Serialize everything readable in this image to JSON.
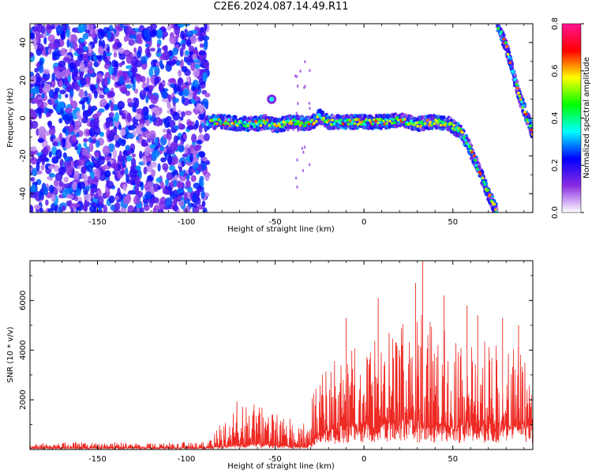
{
  "title": "C2E6.2024.087.14.49.R11",
  "chart_data": [
    {
      "type": "heatmap",
      "xlabel": "Height of straight line (km)",
      "ylabel": "Frequency (Hz)",
      "xlim": [
        -188,
        95
      ],
      "ylim": [
        -50,
        50
      ],
      "x_ticks": [
        -150,
        -100,
        -50,
        0,
        50
      ],
      "y_ticks": [
        -40,
        -20,
        0,
        20,
        40
      ],
      "colorbar": {
        "label": "Normalized spectral amplitude",
        "range": [
          0.0,
          0.8
        ],
        "ticks": [
          "0.0",
          "0.2",
          "0.4",
          "0.6",
          "0.8"
        ],
        "colors": [
          "#ffffff",
          "#8a2be2",
          "#0000ff",
          "#00ffff",
          "#00ff00",
          "#ffff00",
          "#ff0000",
          "#ff1493"
        ]
      },
      "noise_region": {
        "x_range": [
          -188,
          -88
        ],
        "amplitude": [
          0.05,
          0.3
        ]
      },
      "signal_trace": {
        "x": [
          -88,
          -80,
          -70,
          -60,
          -55,
          -50,
          -40,
          -30,
          -25,
          -20,
          -10,
          0,
          10,
          20,
          30,
          40,
          48,
          55,
          60,
          65,
          70,
          75
        ],
        "y": [
          -2,
          -2,
          -3,
          -3,
          -2,
          -4,
          -2,
          -3,
          1,
          -2,
          -2,
          -2,
          -2,
          -1,
          -3,
          -2,
          -3,
          -8,
          -17,
          -28,
          -40,
          -50
        ],
        "amplitude": 0.45
      },
      "secondary_trace": {
        "x": [
          75,
          80,
          85,
          88,
          92,
          95
        ],
        "y": [
          50,
          38,
          20,
          10,
          0,
          -8
        ],
        "amplitude": 0.45
      },
      "blob": {
        "x": -52,
        "y": 10
      }
    },
    {
      "type": "line",
      "xlabel": "Height of straight line (km)",
      "ylabel": "SNR (10 * v/v)",
      "xlim": [
        -188,
        95
      ],
      "ylim": [
        0,
        7600
      ],
      "x_ticks": [
        -150,
        -100,
        -50,
        0,
        50
      ],
      "y_ticks": [
        2000,
        4000,
        6000
      ],
      "color": "#ee2a24",
      "envelope": {
        "x": [
          -188,
          -88,
          -80,
          -72,
          -60,
          -50,
          -40,
          -32,
          -28,
          -24,
          -20,
          -15,
          -10,
          0,
          10,
          20,
          30,
          35,
          40,
          50,
          60,
          70,
          80,
          90,
          95
        ],
        "low": [
          50,
          50,
          100,
          150,
          200,
          150,
          100,
          80,
          300,
          500,
          700,
          700,
          800,
          800,
          900,
          1000,
          900,
          800,
          800,
          800,
          900,
          800,
          800,
          800,
          800
        ],
        "high": [
          300,
          300,
          1200,
          2000,
          1800,
          1500,
          1200,
          1000,
          2500,
          3000,
          3500,
          3800,
          4000,
          4200,
          4500,
          5000,
          5500,
          5500,
          5000,
          4800,
          4600,
          4400,
          4300,
          4200,
          4000
        ]
      },
      "peaks": [
        {
          "x": -10,
          "y": 5300
        },
        {
          "x": 8,
          "y": 6100
        },
        {
          "x": 29,
          "y": 6700
        },
        {
          "x": 33,
          "y": 7600
        },
        {
          "x": 45,
          "y": 6200
        },
        {
          "x": 58,
          "y": 5800
        },
        {
          "x": 64,
          "y": 5400
        },
        {
          "x": 78,
          "y": 5300
        },
        {
          "x": 87,
          "y": 5000
        }
      ]
    }
  ]
}
